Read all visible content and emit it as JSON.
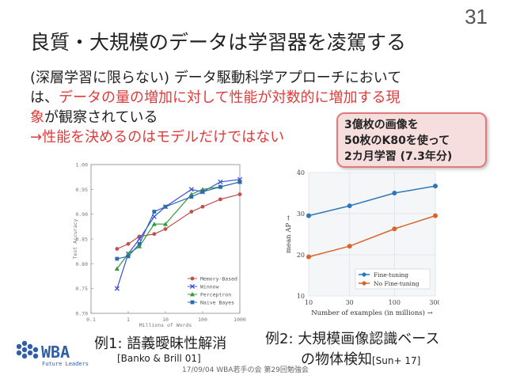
{
  "slide": {
    "number": "31",
    "title": "良質・大規模のデータは学習器を凌駕する",
    "body": {
      "p1": "(深層学習に限らない) データ駆動科学アプローチにおいて",
      "p2_prefix": "は、",
      "p2_red": "データの量の増加に対して性能が対数的に増加する現",
      "p3_red": "象",
      "p3_rest": "が観察されている",
      "p4_red": "→性能を決めるのはモデルだけではない"
    },
    "callout": {
      "line1": "3億枚の画像を",
      "line2": "50枚のK80を使って",
      "line3": "2カ月学習 (7.3年分)"
    },
    "caption1": "例1: 語義曖昧性解消",
    "citation1": "[Banko & Brill 01]",
    "caption2_line1": "例2: 大規模画像認識ベース",
    "caption2_line2": "の物体検知",
    "citation2": "[Sun+ 17]",
    "footer": "17/09/04 WBA若手の会 第29回勉強会",
    "logo": {
      "text": "WBA",
      "subtext": "Future Leaders"
    }
  },
  "chart_data": [
    {
      "type": "line",
      "xlabel": "Millions of Words",
      "ylabel": "Test Accuracy",
      "xscale": "log",
      "xlim": [
        0.1,
        1000
      ],
      "ylim": [
        0.7,
        1.0
      ],
      "x_ticks": [
        "0.1",
        "1",
        "10",
        "100",
        "1000"
      ],
      "y_ticks": [
        "0.70",
        "0.75",
        "0.80",
        "0.85",
        "0.90",
        "0.95",
        "1.00"
      ],
      "legend_position": "bottom-right",
      "x": [
        0.5,
        1,
        2,
        5,
        10,
        50,
        100,
        300,
        1000
      ],
      "series": [
        {
          "name": "Memory-Based",
          "color": "#c0504d",
          "marker": "circle",
          "values": [
            0.83,
            0.84,
            0.855,
            0.86,
            0.87,
            0.905,
            0.915,
            0.93,
            0.94
          ]
        },
        {
          "name": "Winnow",
          "color": "#3b4fd6",
          "marker": "x",
          "values": [
            0.75,
            0.82,
            0.85,
            0.895,
            0.915,
            0.95,
            0.945,
            0.965,
            0.97
          ]
        },
        {
          "name": "Perceptron",
          "color": "#2e9a3a",
          "marker": "triangle",
          "values": [
            0.79,
            0.82,
            0.835,
            0.88,
            0.88,
            0.94,
            0.95,
            0.955,
            0.965
          ]
        },
        {
          "name": "Naive Bayes",
          "color": "#2b6cb0",
          "marker": "square",
          "values": [
            0.81,
            0.815,
            0.84,
            0.905,
            0.915,
            0.935,
            0.945,
            0.955,
            0.965
          ]
        }
      ]
    },
    {
      "type": "line",
      "xlabel": "Number of examples (in millions) →",
      "ylabel": "mean AP →",
      "xscale": "log",
      "xlim": [
        10,
        300
      ],
      "ylim": [
        10,
        40
      ],
      "x_ticks": [
        "10",
        "30",
        "100",
        "300"
      ],
      "y_ticks": [
        "10",
        "20",
        "30",
        "40"
      ],
      "legend_position": "bottom-right",
      "x": [
        10,
        30,
        100,
        300
      ],
      "series": [
        {
          "name": "Fine-tuning",
          "color": "#2f78b8",
          "values": [
            29.5,
            31.9,
            35.0,
            36.7
          ]
        },
        {
          "name": "No Fine-tuning",
          "color": "#d9652b",
          "values": [
            19.5,
            22.1,
            26.3,
            29.5
          ]
        }
      ]
    }
  ]
}
